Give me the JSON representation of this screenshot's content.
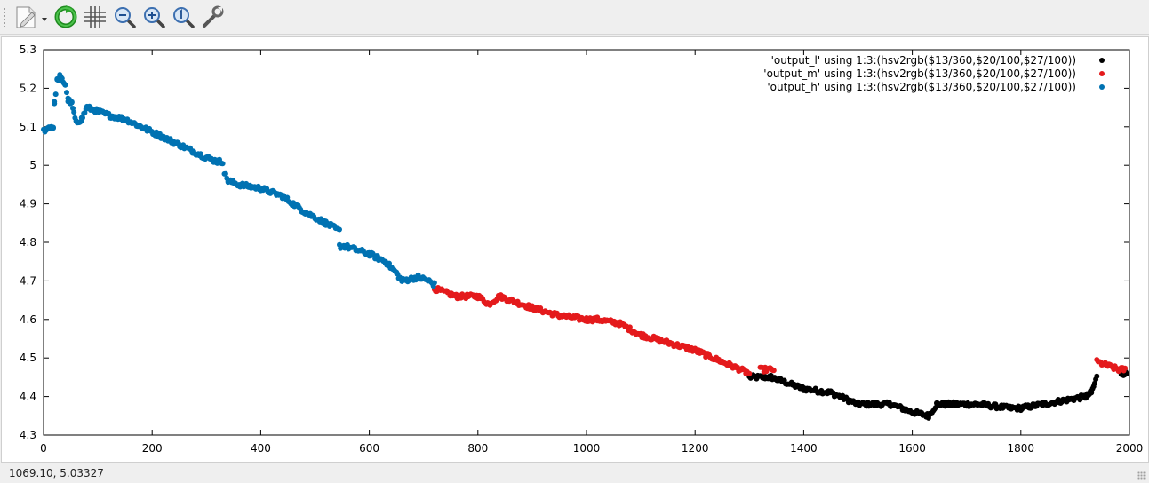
{
  "toolbar": {
    "items": [
      {
        "name": "export-icon",
        "has_dropdown": true
      },
      {
        "name": "replot-icon"
      },
      {
        "name": "grid-icon"
      },
      {
        "name": "zoom-previous-icon"
      },
      {
        "name": "zoom-next-icon"
      },
      {
        "name": "autoscale-icon"
      },
      {
        "name": "settings-icon"
      }
    ]
  },
  "status": {
    "coordinates": "1069.10,  5.03327"
  },
  "colors": {
    "series_l": "#000000",
    "series_m": "#e41a1c",
    "series_h": "#0072b2"
  },
  "chart_data": {
    "type": "scatter",
    "xlim": [
      0,
      2000
    ],
    "ylim": [
      4.3,
      5.3
    ],
    "x_ticks": [
      "0",
      "200",
      "400",
      "600",
      "800",
      "1000",
      "1200",
      "1400",
      "1600",
      "1800",
      "2000"
    ],
    "y_ticks": [
      "4.3",
      "4.4",
      "4.5",
      "4.6",
      "4.7",
      "4.8",
      "4.9",
      "5",
      "5.1",
      "5.2",
      "5.3"
    ],
    "grid": false,
    "legend_position": "top-right",
    "series": [
      {
        "name": "'output_l' using 1:3:(hsv2rgb($13/360,$20/100,$27/100))",
        "color": "#000000",
        "segments": [
          {
            "x": [
              1300,
              1340,
              1400,
              1450,
              1500,
              1560,
              1600,
              1630,
              1645,
              1680,
              1720,
              1780,
              1800,
              1840,
              1880,
              1920,
              1930
            ],
            "y": [
              4.45,
              4.45,
              4.42,
              4.41,
              4.38,
              4.38,
              4.36,
              4.35,
              4.38,
              4.38,
              4.38,
              4.37,
              4.37,
              4.38,
              4.39,
              4.4,
              4.41
            ]
          },
          {
            "x": [
              1930,
              1940
            ],
            "y": [
              4.41,
              4.45
            ]
          },
          {
            "x": [
              1985,
              1995
            ],
            "y": [
              4.46,
              4.46
            ]
          }
        ]
      },
      {
        "name": "'output_m' using 1:3:(hsv2rgb($13/360,$20/100,$27/100))",
        "color": "#e41a1c",
        "segments": [
          {
            "x": [
              720,
              760,
              800,
              820,
              840,
              900,
              950,
              1000,
              1020,
              1060,
              1100,
              1150,
              1200,
              1250,
              1300
            ],
            "y": [
              4.68,
              4.66,
              4.66,
              4.64,
              4.66,
              4.63,
              4.61,
              4.6,
              4.6,
              4.59,
              4.56,
              4.54,
              4.52,
              4.49,
              4.46
            ]
          },
          {
            "x": [
              1320,
              1345
            ],
            "y": [
              4.47,
              4.47
            ]
          },
          {
            "x": [
              1940,
              1960,
              1980,
              1992
            ],
            "y": [
              4.49,
              4.48,
              4.47,
              4.47
            ]
          }
        ]
      },
      {
        "name": "'output_h' using 1:3:(hsv2rgb($13/360,$20/100,$27/100))",
        "color": "#0072b2",
        "segments": [
          {
            "x": [
              0,
              12,
              18,
              20,
              25,
              30,
              40,
              45,
              52,
              60,
              70,
              80,
              100,
              120,
              150,
              180,
              210,
              240,
              270,
              300,
              320,
              330
            ],
            "y": [
              5.09,
              5.1,
              5.1,
              5.16,
              5.22,
              5.23,
              5.21,
              5.17,
              5.16,
              5.11,
              5.12,
              5.15,
              5.14,
              5.13,
              5.12,
              5.1,
              5.08,
              5.06,
              5.04,
              5.02,
              5.01,
              5.01
            ]
          },
          {
            "x": [
              333,
              340,
              360,
              400,
              440,
              480,
              520,
              545
            ],
            "y": [
              4.98,
              4.96,
              4.95,
              4.94,
              4.92,
              4.88,
              4.85,
              4.83
            ]
          },
          {
            "x": [
              545,
              555,
              600,
              630,
              650,
              660,
              690,
              710,
              720
            ],
            "y": [
              4.79,
              4.79,
              4.77,
              4.75,
              4.72,
              4.7,
              4.71,
              4.7,
              4.69
            ]
          }
        ]
      }
    ]
  }
}
